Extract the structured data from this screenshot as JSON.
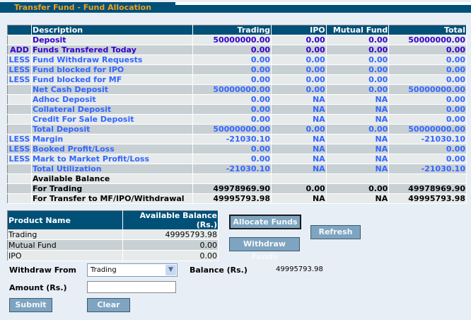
{
  "title": "Transfer Fund - Fund Allocation",
  "table": {
    "headers": [
      "",
      "Description",
      "Trading",
      "IPO",
      "Mutual Fund",
      "Total"
    ],
    "rows": [
      {
        "prefix": "",
        "desc": "Deposit",
        "vals": [
          "50000000.00",
          "0.00",
          "0.00",
          "50000000.00"
        ],
        "color": "purple"
      },
      {
        "prefix": "ADD",
        "desc": "Funds Transfered Today",
        "vals": [
          "0.00",
          "0.00",
          "0.00",
          "0.00"
        ],
        "color": "purple"
      },
      {
        "prefix": "LESS",
        "desc": "Fund Withdraw Requests",
        "vals": [
          "0.00",
          "0.00",
          "0.00",
          "0.00"
        ],
        "color": "blue"
      },
      {
        "prefix": "LESS",
        "desc": "Fund blocked for IPO",
        "vals": [
          "0.00",
          "0.00",
          "0.00",
          "0.00"
        ],
        "color": "blue"
      },
      {
        "prefix": "LESS",
        "desc": "Fund blocked for MF",
        "vals": [
          "0.00",
          "0.00",
          "0.00",
          "0.00"
        ],
        "color": "blue"
      },
      {
        "prefix": "",
        "desc": "Net Cash Deposit",
        "vals": [
          "50000000.00",
          "0.00",
          "0.00",
          "50000000.00"
        ],
        "color": "blue"
      },
      {
        "prefix": "",
        "desc": "Adhoc Deposit",
        "vals": [
          "0.00",
          "NA",
          "NA",
          "0.00"
        ],
        "color": "blue"
      },
      {
        "prefix": "",
        "desc": "Collateral Deposit",
        "vals": [
          "0.00",
          "NA",
          "NA",
          "0.00"
        ],
        "color": "blue"
      },
      {
        "prefix": "",
        "desc": "Credit For Sale Deposit",
        "vals": [
          "0.00",
          "NA",
          "NA",
          "0.00"
        ],
        "color": "blue"
      },
      {
        "prefix": "",
        "desc": "Total Deposit",
        "vals": [
          "50000000.00",
          "0.00",
          "0.00",
          "50000000.00"
        ],
        "color": "blue"
      },
      {
        "prefix": "LESS",
        "desc": "Margin",
        "vals": [
          "-21030.10",
          "NA",
          "NA",
          "-21030.10"
        ],
        "color": "blue"
      },
      {
        "prefix": "LESS",
        "desc": "Booked Profit/Loss",
        "vals": [
          "0.00",
          "NA",
          "NA",
          "0.00"
        ],
        "color": "blue"
      },
      {
        "prefix": "LESS",
        "desc": "Mark to Market Profit/Loss",
        "vals": [
          "0.00",
          "NA",
          "NA",
          "0.00"
        ],
        "color": "blue"
      },
      {
        "prefix": "",
        "desc": "Total Utilization",
        "vals": [
          "-21030.10",
          "NA",
          "NA",
          "-21030.10"
        ],
        "color": "blue"
      },
      {
        "prefix": "",
        "desc": "Available Balance",
        "vals": [
          "",
          "",
          "",
          ""
        ],
        "color": "black"
      },
      {
        "prefix": "",
        "desc": "For Trading",
        "vals": [
          "49978969.90",
          "0.00",
          "0.00",
          "49978969.90"
        ],
        "color": "black"
      },
      {
        "prefix": "",
        "desc": "For Transfer to MF/IPO/Withdrawal",
        "vals": [
          "49995793.98",
          "NA",
          "NA",
          "49995793.98"
        ],
        "color": "black"
      }
    ]
  },
  "products": {
    "headers": [
      "Product Name",
      "Available Balance (Rs.)"
    ],
    "rows": [
      [
        "Trading",
        "49995793.98"
      ],
      [
        "Mutual Fund",
        "0.00"
      ],
      [
        "IPO",
        "0.00"
      ]
    ]
  },
  "buttons": {
    "allocate": "Allocate Funds",
    "withdraw": "Withdraw Funds",
    "refresh": "Refresh",
    "submit": "Submit",
    "clear": "Clear"
  },
  "form": {
    "withdraw_from_label": "Withdraw From",
    "withdraw_from_value": "Trading",
    "balance_label": "Balance (Rs.)",
    "balance_value": "49995793.98",
    "amount_label": "Amount (Rs.)",
    "amount_value": ""
  }
}
